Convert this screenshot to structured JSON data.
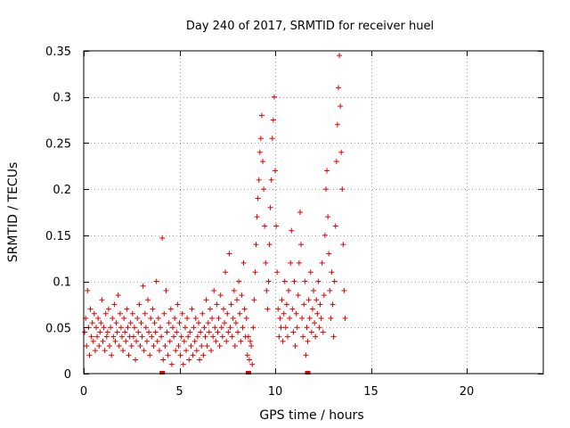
{
  "chart_data": {
    "type": "scatter",
    "title": "Day 240 of 2017, SRMTID for receiver huel",
    "xlabel": "GPS time / hours",
    "ylabel": "SRMTID / TECUs",
    "xlim": [
      0,
      24
    ],
    "ylim": [
      0,
      0.35
    ],
    "xticks": [
      0,
      5,
      10,
      15,
      20
    ],
    "xtick_labels": [
      "0",
      "5",
      "10",
      "15",
      "20"
    ],
    "yticks": [
      0,
      0.05,
      0.1,
      0.15,
      0.2,
      0.25,
      0.3,
      0.35
    ],
    "ytick_labels": [
      "0",
      "0.05",
      "0.1",
      "0.15",
      "0.2",
      "0.25",
      "0.3",
      "0.35"
    ],
    "grid": true,
    "series": [
      {
        "name": "SRMTID",
        "marker": "plus",
        "color": "#e00000",
        "points": [
          [
            0.05,
            0.045
          ],
          [
            0.1,
            0.06
          ],
          [
            0.15,
            0.03
          ],
          [
            0.2,
            0.09
          ],
          [
            0.25,
            0.05
          ],
          [
            0.3,
            0.02
          ],
          [
            0.35,
            0.07
          ],
          [
            0.4,
            0.04
          ],
          [
            0.45,
            0.055
          ],
          [
            0.5,
            0.035
          ],
          [
            0.55,
            0.065
          ],
          [
            0.6,
            0.025
          ],
          [
            0.65,
            0.05
          ],
          [
            0.7,
            0.04
          ],
          [
            0.75,
            0.06
          ],
          [
            0.8,
            0.03
          ],
          [
            0.85,
            0.045
          ],
          [
            0.9,
            0.055
          ],
          [
            0.95,
            0.08
          ],
          [
            1.0,
            0.035
          ],
          [
            1.05,
            0.05
          ],
          [
            1.1,
            0.025
          ],
          [
            1.15,
            0.065
          ],
          [
            1.2,
            0.04
          ],
          [
            1.25,
            0.045
          ],
          [
            1.3,
            0.07
          ],
          [
            1.35,
            0.03
          ],
          [
            1.4,
            0.05
          ],
          [
            1.45,
            0.02
          ],
          [
            1.5,
            0.06
          ],
          [
            1.55,
            0.04
          ],
          [
            1.6,
            0.075
          ],
          [
            1.65,
            0.035
          ],
          [
            1.7,
            0.055
          ],
          [
            1.75,
            0.045
          ],
          [
            1.8,
            0.085
          ],
          [
            1.85,
            0.03
          ],
          [
            1.9,
            0.065
          ],
          [
            1.95,
            0.05
          ],
          [
            2.0,
            0.04
          ],
          [
            2.05,
            0.025
          ],
          [
            2.1,
            0.06
          ],
          [
            2.15,
            0.045
          ],
          [
            2.2,
            0.035
          ],
          [
            2.25,
            0.07
          ],
          [
            2.3,
            0.05
          ],
          [
            2.35,
            0.02
          ],
          [
            2.4,
            0.04
          ],
          [
            2.45,
            0.055
          ],
          [
            2.5,
            0.03
          ],
          [
            2.55,
            0.065
          ],
          [
            2.6,
            0.04
          ],
          [
            2.65,
            0.05
          ],
          [
            2.7,
            0.015
          ],
          [
            2.75,
            0.035
          ],
          [
            2.8,
            0.06
          ],
          [
            2.85,
            0.045
          ],
          [
            2.9,
            0.075
          ],
          [
            2.95,
            0.03
          ],
          [
            3.0,
            0.055
          ],
          [
            3.05,
            0.04
          ],
          [
            3.1,
            0.095
          ],
          [
            3.15,
            0.025
          ],
          [
            3.2,
            0.065
          ],
          [
            3.25,
            0.05
          ],
          [
            3.3,
            0.035
          ],
          [
            3.35,
            0.08
          ],
          [
            3.4,
            0.045
          ],
          [
            3.45,
            0.02
          ],
          [
            3.5,
            0.06
          ],
          [
            3.55,
            0.04
          ],
          [
            3.6,
            0.07
          ],
          [
            3.65,
            0.03
          ],
          [
            3.7,
            0.055
          ],
          [
            3.75,
            0.045
          ],
          [
            3.8,
            0.1
          ],
          [
            3.85,
            0.035
          ],
          [
            3.9,
            0.06
          ],
          [
            3.95,
            0.025
          ],
          [
            4.0,
            0.05
          ],
          [
            4.05,
            0.04
          ],
          [
            4.1,
            0.147
          ],
          [
            4.15,
            0.015
          ],
          [
            4.2,
            0.065
          ],
          [
            4.25,
            0.03
          ],
          [
            4.3,
            0.09
          ],
          [
            4.35,
            0.045
          ],
          [
            4.4,
            0.02
          ],
          [
            4.45,
            0.055
          ],
          [
            4.5,
            0.035
          ],
          [
            4.55,
            0.07
          ],
          [
            4.6,
            0.01
          ],
          [
            4.65,
            0.05
          ],
          [
            4.7,
            0.04
          ],
          [
            4.75,
            0.06
          ],
          [
            4.8,
            0.025
          ],
          [
            4.85,
            0.045
          ],
          [
            4.9,
            0.075
          ],
          [
            4.95,
            0.03
          ],
          [
            5.0,
            0.055
          ],
          [
            5.05,
            0.02
          ],
          [
            5.1,
            0.04
          ],
          [
            5.15,
            0.065
          ],
          [
            5.2,
            0.01
          ],
          [
            5.25,
            0.035
          ],
          [
            5.3,
            0.05
          ],
          [
            5.35,
            0.025
          ],
          [
            5.4,
            0.06
          ],
          [
            5.45,
            0.04
          ],
          [
            5.5,
            0.015
          ],
          [
            5.55,
            0.045
          ],
          [
            5.6,
            0.03
          ],
          [
            5.65,
            0.07
          ],
          [
            5.7,
            0.02
          ],
          [
            5.75,
            0.05
          ],
          [
            5.8,
            0.035
          ],
          [
            5.85,
            0.06
          ],
          [
            5.9,
            0.025
          ],
          [
            5.95,
            0.04
          ],
          [
            6.0,
            0.055
          ],
          [
            6.05,
            0.015
          ],
          [
            6.1,
            0.045
          ],
          [
            6.15,
            0.03
          ],
          [
            6.2,
            0.065
          ],
          [
            6.25,
            0.02
          ],
          [
            6.3,
            0.05
          ],
          [
            6.35,
            0.04
          ],
          [
            6.4,
            0.08
          ],
          [
            6.45,
            0.03
          ],
          [
            6.5,
            0.055
          ],
          [
            6.55,
            0.045
          ],
          [
            6.6,
            0.07
          ],
          [
            6.65,
            0.025
          ],
          [
            6.7,
            0.06
          ],
          [
            6.75,
            0.04
          ],
          [
            6.8,
            0.09
          ],
          [
            6.85,
            0.05
          ],
          [
            6.9,
            0.035
          ],
          [
            6.95,
            0.075
          ],
          [
            7.0,
            0.045
          ],
          [
            7.05,
            0.06
          ],
          [
            7.1,
            0.03
          ],
          [
            7.15,
            0.085
          ],
          [
            7.2,
            0.05
          ],
          [
            7.25,
            0.04
          ],
          [
            7.3,
            0.07
          ],
          [
            7.35,
            0.055
          ],
          [
            7.4,
            0.11
          ],
          [
            7.45,
            0.035
          ],
          [
            7.5,
            0.065
          ],
          [
            7.55,
            0.045
          ],
          [
            7.6,
            0.13
          ],
          [
            7.65,
            0.05
          ],
          [
            7.7,
            0.075
          ],
          [
            7.75,
            0.04
          ],
          [
            7.8,
            0.06
          ],
          [
            7.85,
            0.09
          ],
          [
            7.9,
            0.03
          ],
          [
            7.95,
            0.055
          ],
          [
            8.0,
            0.08
          ],
          [
            8.05,
            0.045
          ],
          [
            8.1,
            0.1
          ],
          [
            8.15,
            0.065
          ],
          [
            8.2,
            0.035
          ],
          [
            8.25,
            0.085
          ],
          [
            8.3,
            0.05
          ],
          [
            8.35,
            0.12
          ],
          [
            8.4,
            0.07
          ],
          [
            8.45,
            0.04
          ],
          [
            8.5,
            0.06
          ],
          [
            8.55,
            0.02
          ],
          [
            8.6,
            0.04
          ],
          [
            8.65,
            0.015
          ],
          [
            8.7,
            0.035
          ],
          [
            8.75,
            0.03
          ],
          [
            8.8,
            0.01
          ],
          [
            8.85,
            0.05
          ],
          [
            8.9,
            0.08
          ],
          [
            8.95,
            0.11
          ],
          [
            9.0,
            0.14
          ],
          [
            9.05,
            0.17
          ],
          [
            9.1,
            0.19
          ],
          [
            9.15,
            0.21
          ],
          [
            9.2,
            0.24
          ],
          [
            9.25,
            0.255
          ],
          [
            9.3,
            0.28
          ],
          [
            9.35,
            0.23
          ],
          [
            9.4,
            0.2
          ],
          [
            9.45,
            0.16
          ],
          [
            9.5,
            0.12
          ],
          [
            9.55,
            0.09
          ],
          [
            9.6,
            0.07
          ],
          [
            9.65,
            0.1
          ],
          [
            9.7,
            0.14
          ],
          [
            9.75,
            0.18
          ],
          [
            9.8,
            0.21
          ],
          [
            9.85,
            0.255
          ],
          [
            9.9,
            0.275
          ],
          [
            9.95,
            0.3
          ],
          [
            10.0,
            0.22
          ],
          [
            10.05,
            0.16
          ],
          [
            10.1,
            0.11
          ],
          [
            10.15,
            0.07
          ],
          [
            10.2,
            0.04
          ],
          [
            10.25,
            0.06
          ],
          [
            10.3,
            0.05
          ],
          [
            10.35,
            0.08
          ],
          [
            10.4,
            0.035
          ],
          [
            10.45,
            0.065
          ],
          [
            10.5,
            0.1
          ],
          [
            10.55,
            0.05
          ],
          [
            10.6,
            0.075
          ],
          [
            10.65,
            0.04
          ],
          [
            10.7,
            0.09
          ],
          [
            10.75,
            0.06
          ],
          [
            10.8,
            0.12
          ],
          [
            10.85,
            0.155
          ],
          [
            10.9,
            0.07
          ],
          [
            10.95,
            0.045
          ],
          [
            11.0,
            0.1
          ],
          [
            11.05,
            0.03
          ],
          [
            11.1,
            0.065
          ],
          [
            11.15,
            0.05
          ],
          [
            11.2,
            0.085
          ],
          [
            11.25,
            0.12
          ],
          [
            11.3,
            0.175
          ],
          [
            11.35,
            0.14
          ],
          [
            11.4,
            0.06
          ],
          [
            11.45,
            0.04
          ],
          [
            11.5,
            0.075
          ],
          [
            11.55,
            0.1
          ],
          [
            11.6,
            0.02
          ],
          [
            11.65,
            0.05
          ],
          [
            11.7,
            0.035
          ],
          [
            11.75,
            0.08
          ],
          [
            11.8,
            0.06
          ],
          [
            11.85,
            0.11
          ],
          [
            11.9,
            0.045
          ],
          [
            11.95,
            0.07
          ],
          [
            12.0,
            0.09
          ],
          [
            12.05,
            0.055
          ],
          [
            12.1,
            0.04
          ],
          [
            12.15,
            0.08
          ],
          [
            12.2,
            0.065
          ],
          [
            12.25,
            0.1
          ],
          [
            12.3,
            0.05
          ],
          [
            12.35,
            0.075
          ],
          [
            12.4,
            0.06
          ],
          [
            12.45,
            0.12
          ],
          [
            12.5,
            0.045
          ],
          [
            12.55,
            0.085
          ],
          [
            12.6,
            0.15
          ],
          [
            12.65,
            0.2
          ],
          [
            12.7,
            0.22
          ],
          [
            12.75,
            0.17
          ],
          [
            12.8,
            0.13
          ],
          [
            12.85,
            0.09
          ],
          [
            12.9,
            0.06
          ],
          [
            12.95,
            0.11
          ],
          [
            13.0,
            0.075
          ],
          [
            13.05,
            0.04
          ],
          [
            13.1,
            0.1
          ],
          [
            13.15,
            0.16
          ],
          [
            13.2,
            0.23
          ],
          [
            13.25,
            0.27
          ],
          [
            13.3,
            0.31
          ],
          [
            13.35,
            0.345
          ],
          [
            13.4,
            0.29
          ],
          [
            13.45,
            0.24
          ],
          [
            13.5,
            0.2
          ],
          [
            13.55,
            0.14
          ],
          [
            13.6,
            0.09
          ],
          [
            13.65,
            0.06
          ]
        ]
      }
    ],
    "zero_markers": [
      4.1,
      8.6,
      11.7
    ]
  }
}
